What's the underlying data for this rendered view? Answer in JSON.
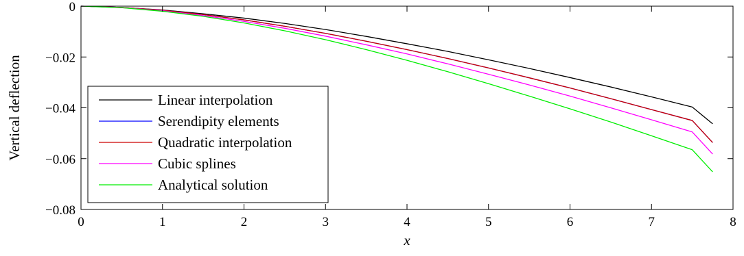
{
  "chart_data": {
    "type": "line",
    "title": "",
    "xlabel": "x",
    "ylabel": "Vertical deflection",
    "xlim": [
      0,
      8
    ],
    "ylim": [
      -0.08,
      0
    ],
    "xticks": [
      0,
      1,
      2,
      3,
      4,
      5,
      6,
      7,
      8
    ],
    "xtick_labels": [
      "0",
      "1",
      "2",
      "3",
      "4",
      "5",
      "6",
      "7",
      "8"
    ],
    "yticks": [
      0,
      -0.02,
      -0.04,
      -0.06,
      -0.08
    ],
    "ytick_labels": [
      "0",
      "−0.02",
      "−0.04",
      "−0.06",
      "−0.08"
    ],
    "grid": false,
    "legend_position": "bottom-left",
    "x": [
      0,
      0.5,
      1,
      1.5,
      2,
      2.5,
      3,
      3.5,
      4,
      4.5,
      5,
      5.5,
      6,
      6.5,
      7,
      7.5,
      7.75
    ],
    "series": [
      {
        "name": "Linear interpolation",
        "color": "#000000",
        "values": [
          0,
          -0.0005,
          -0.0015,
          -0.003,
          -0.0047,
          -0.0068,
          -0.0092,
          -0.0119,
          -0.0148,
          -0.0178,
          -0.0211,
          -0.0245,
          -0.0281,
          -0.0318,
          -0.0357,
          -0.0397,
          -0.0463
        ]
      },
      {
        "name": "Serendipity elements",
        "color": "#0000ff",
        "values": [
          0,
          -0.0005,
          -0.0016,
          -0.0033,
          -0.0054,
          -0.0079,
          -0.0107,
          -0.0138,
          -0.0171,
          -0.0206,
          -0.0243,
          -0.0282,
          -0.0322,
          -0.0364,
          -0.0407,
          -0.045,
          -0.0537
        ]
      },
      {
        "name": "Quadratic interpolation",
        "color": "#cc0000",
        "values": [
          0,
          -0.0005,
          -0.0016,
          -0.0033,
          -0.0054,
          -0.0079,
          -0.0107,
          -0.0138,
          -0.0171,
          -0.0206,
          -0.0243,
          -0.0282,
          -0.0322,
          -0.0364,
          -0.0407,
          -0.045,
          -0.0537
        ]
      },
      {
        "name": "Cubic splines",
        "color": "#ff00ff",
        "values": [
          0,
          -0.0006,
          -0.0018,
          -0.0037,
          -0.006,
          -0.0087,
          -0.0118,
          -0.0152,
          -0.0188,
          -0.0227,
          -0.0268,
          -0.031,
          -0.0354,
          -0.04,
          -0.0447,
          -0.0495,
          -0.0582
        ]
      },
      {
        "name": "Analytical solution",
        "color": "#00ee00",
        "values": [
          0,
          -0.0006,
          -0.002,
          -0.004,
          -0.0066,
          -0.0097,
          -0.0132,
          -0.0171,
          -0.0213,
          -0.0258,
          -0.0305,
          -0.0354,
          -0.0404,
          -0.0456,
          -0.051,
          -0.0565,
          -0.0652
        ]
      }
    ]
  }
}
